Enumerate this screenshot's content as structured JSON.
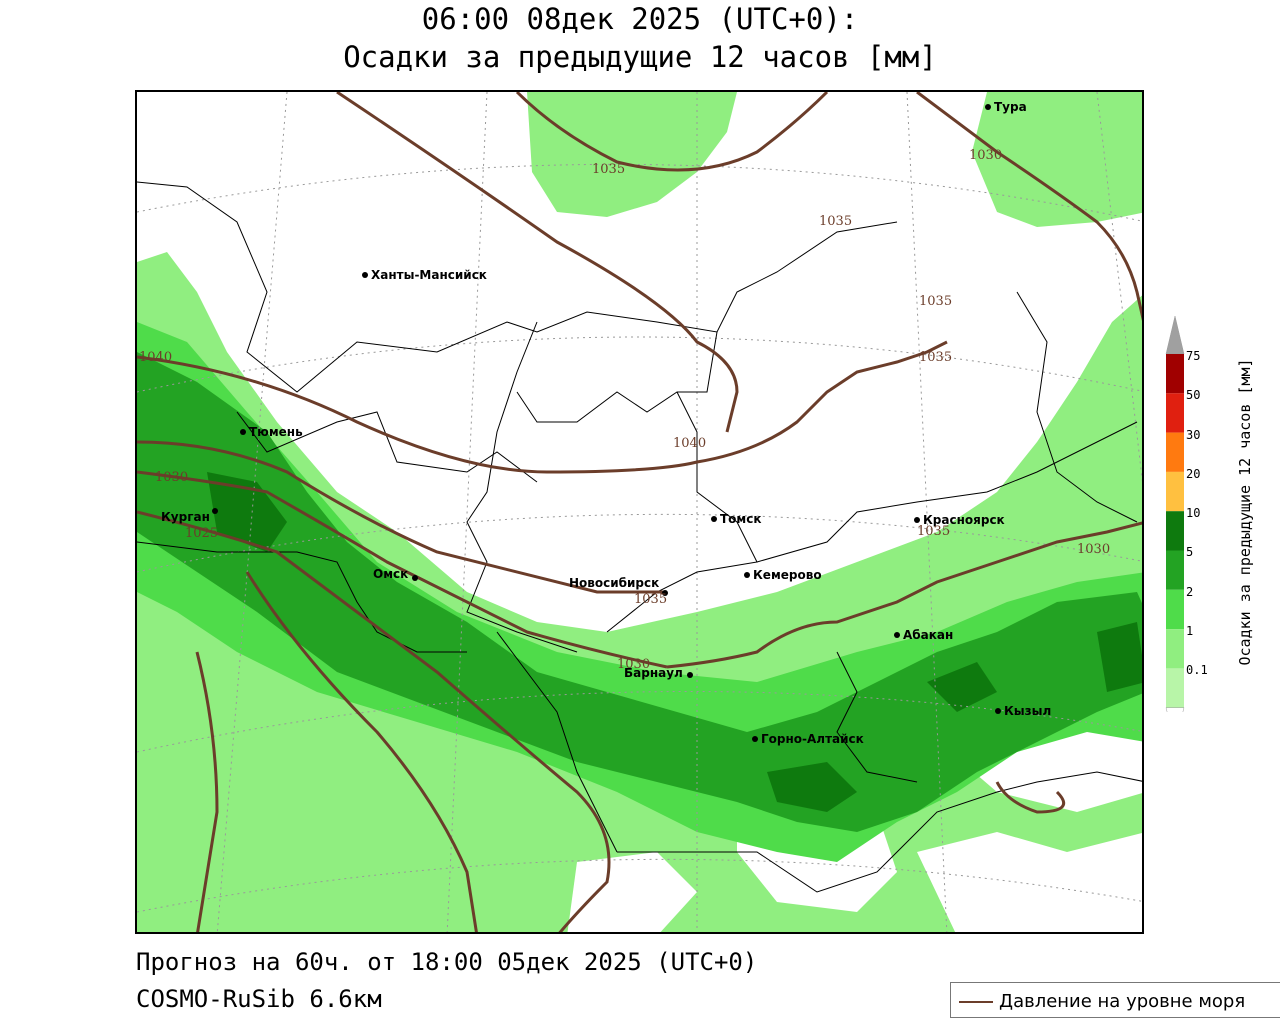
{
  "title": {
    "line1": "06:00 08дек 2025 (UTC+0):",
    "line2": "Осадки за предыдущие 12 часов [мм]"
  },
  "footer": {
    "forecast": "Прогноз на 60ч. от 18:00 05дек 2025 (UTC+0)",
    "model": "COSMO-RuSib 6.6км"
  },
  "legend": {
    "pressure": "Давление на уровне моря"
  },
  "colorbar": {
    "title": "Осадки за предыдущие 12 часов [мм]",
    "levels": [
      "0.1",
      "1",
      "2",
      "5",
      "10",
      "20",
      "30",
      "50",
      "75"
    ],
    "colors": [
      "#b8f5a8",
      "#90ee80",
      "#4fdc4a",
      "#23a323",
      "#0e7a0e",
      "#ffc040",
      "#ff7a10",
      "#e02010",
      "#a00000",
      "#a0a0a0"
    ]
  },
  "cities": [
    {
      "name": "Тура"
    },
    {
      "name": "Ханты-Мансийск"
    },
    {
      "name": "Тюмень"
    },
    {
      "name": "Курган"
    },
    {
      "name": "Омск"
    },
    {
      "name": "Томск"
    },
    {
      "name": "Новосибирск"
    },
    {
      "name": "Кемерово"
    },
    {
      "name": "Красноярск"
    },
    {
      "name": "Абакан"
    },
    {
      "name": "Барнаул"
    },
    {
      "name": "Горно-Алтайск"
    },
    {
      "name": "Кызыл"
    }
  ],
  "isobars": [
    "1035",
    "1030",
    "1035",
    "1035",
    "1035",
    "1040",
    "1040",
    "1030",
    "1025",
    "1035",
    "1030",
    "1035",
    "1030"
  ]
}
